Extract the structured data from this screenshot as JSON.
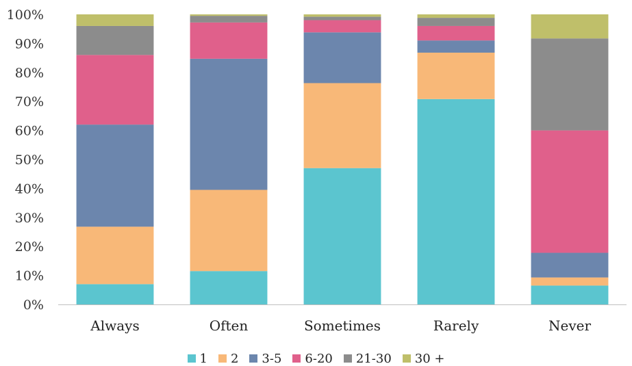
{
  "chart_data": {
    "type": "bar",
    "stacked": true,
    "categories": [
      "Always",
      "Often",
      "Sometimes",
      "Rarely",
      "Never"
    ],
    "series": [
      {
        "name": "1",
        "color": "#5bc5cf",
        "values": [
          7.0,
          11.5,
          47.0,
          70.8,
          6.5
        ]
      },
      {
        "name": "2",
        "color": "#f8b878",
        "values": [
          19.8,
          28.0,
          29.3,
          16.0,
          2.8
        ]
      },
      {
        "name": "3-5",
        "color": "#6c86ad",
        "values": [
          35.2,
          45.2,
          17.5,
          4.2,
          8.5
        ]
      },
      {
        "name": "6-20",
        "color": "#e0608b",
        "values": [
          24.0,
          12.5,
          4.2,
          5.0,
          42.2
        ]
      },
      {
        "name": "21-30",
        "color": "#8c8c8c",
        "values": [
          10.0,
          2.3,
          1.2,
          2.8,
          31.7
        ]
      },
      {
        "name": "30 +",
        "color": "#bfbf6a",
        "values": [
          4.0,
          0.5,
          0.8,
          1.2,
          8.3
        ]
      }
    ],
    "yticks": [
      "0%",
      "10%",
      "20%",
      "30%",
      "40%",
      "50%",
      "60%",
      "70%",
      "80%",
      "90%",
      "100%"
    ],
    "ylim": [
      0,
      100
    ],
    "grid": false,
    "legend_position": "bottom"
  }
}
